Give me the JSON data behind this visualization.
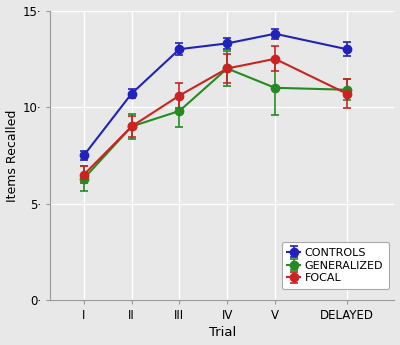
{
  "x_labels": [
    "I",
    "II",
    "III",
    "IV",
    "V",
    "DELAYED"
  ],
  "x_positions": [
    1,
    2,
    3,
    4,
    5,
    6.5
  ],
  "controls_y": [
    7.5,
    10.7,
    13.0,
    13.3,
    13.8,
    13.0
  ],
  "controls_yerr": [
    0.25,
    0.25,
    0.3,
    0.3,
    0.25,
    0.35
  ],
  "generalized_y": [
    6.3,
    9.0,
    9.8,
    12.0,
    11.0,
    10.9
  ],
  "generalized_yerr": [
    0.65,
    0.65,
    0.85,
    0.9,
    1.4,
    0.55
  ],
  "focal_y": [
    6.5,
    9.0,
    10.6,
    12.0,
    12.5,
    10.7
  ],
  "focal_yerr": [
    0.45,
    0.55,
    0.65,
    0.75,
    0.65,
    0.75
  ],
  "controls_color": "#2222BB",
  "generalized_color": "#228B22",
  "focal_color": "#CC2222",
  "bg_color": "#E8E8E8",
  "plot_bg_color": "#E8E8E8",
  "xlabel": "Trial",
  "ylabel": "Items Recalled",
  "ylim": [
    0,
    15
  ],
  "ytick_vals": [
    0,
    5,
    10,
    15
  ],
  "ytick_labels": [
    "0·",
    "5·",
    "10·",
    "15·"
  ],
  "legend_labels": [
    "CONTROLS",
    "GENERALIZED",
    "FOCAL"
  ],
  "markersize": 6,
  "linewidth": 1.5,
  "capsize": 3,
  "elinewidth": 1.2,
  "capthick": 1.2
}
